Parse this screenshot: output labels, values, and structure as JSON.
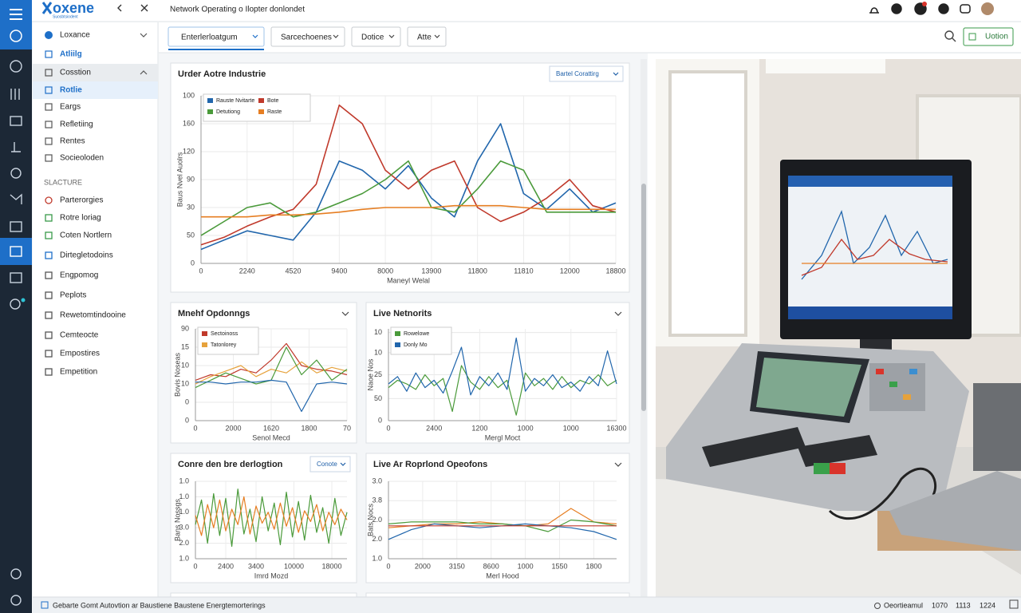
{
  "header": {
    "logo": "oxene",
    "logo_sub": "Suosbtsiodent",
    "title": "Network Operating o Ilopter donlondet"
  },
  "toolbar": {
    "tabs": [
      "Enterlerloatgum",
      "Sarcechoenes",
      "Dotice",
      "Atte"
    ],
    "button": "Uotion"
  },
  "sidebar": {
    "items": [
      "Loxance",
      "Atliilg",
      "Cosstion",
      "Rotlie",
      "Eargs",
      "Refletiing",
      "Rentes",
      "Socieoloden"
    ],
    "section": "SLACTURE",
    "section_items": [
      "Parterorgies",
      "Rotre loriag",
      "Coten Nortlern",
      "Dirtegletodoins",
      "Engpomog",
      "Peplots",
      "Rewetomtindooine",
      "Cemteocte",
      "Empostires",
      "Empetition"
    ]
  },
  "charts": [
    {
      "type": "line",
      "title": "Urder Aotre Industrie",
      "control": "Bartel Corattirg",
      "xlabel": "Maneyl Welal",
      "ylabel": "Baus Nvel Auolrs",
      "xlim": [
        0,
        18000
      ],
      "ylim": [
        0,
        180
      ],
      "xticks": [
        0,
        {
          "value": 2000,
          "label": "2240"
        },
        {
          "value": 4000,
          "label": "4520"
        },
        {
          "value": 6000,
          "label": "9400"
        },
        8000,
        {
          "value": 10000,
          "label": "13900"
        },
        {
          "value": 12000,
          "label": "11800"
        },
        {
          "value": 14000,
          "label": "11810"
        },
        {
          "value": 16000,
          "label": "12000"
        },
        {
          "value": 18000,
          "label": "18800"
        }
      ],
      "yticks": [
        0,
        {
          "value": 30,
          "label": "50"
        },
        {
          "value": 60,
          "label": "30"
        },
        90,
        120,
        {
          "value": 150,
          "label": "160"
        },
        {
          "value": 180,
          "label": "100"
        }
      ],
      "x": [
        0,
        1000,
        2000,
        3000,
        4000,
        5000,
        6000,
        7000,
        8000,
        9000,
        10000,
        11000,
        12000,
        13000,
        14000,
        15000,
        16000,
        17000,
        18000
      ],
      "series": [
        {
          "name": "Rauste Nvitarte",
          "color": "#2166ac",
          "values": [
            15,
            25,
            35,
            30,
            25,
            55,
            110,
            100,
            80,
            105,
            70,
            50,
            110,
            150,
            75,
            58,
            80,
            55,
            65
          ]
        },
        {
          "name": "Bote",
          "color": "#c0392b",
          "values": [
            20,
            28,
            40,
            50,
            58,
            85,
            170,
            150,
            100,
            80,
            100,
            110,
            60,
            45,
            55,
            70,
            90,
            62,
            55
          ]
        },
        {
          "name": "Detutiong",
          "color": "#4a9a3a",
          "values": [
            30,
            45,
            60,
            65,
            50,
            55,
            65,
            75,
            90,
            110,
            60,
            55,
            80,
            110,
            100,
            55,
            55,
            55,
            55
          ]
        },
        {
          "name": "Raste",
          "color": "#e67e22",
          "values": [
            50,
            50,
            50,
            52,
            52,
            53,
            55,
            58,
            60,
            60,
            60,
            62,
            62,
            62,
            60,
            58,
            58,
            58,
            58
          ]
        }
      ]
    },
    {
      "type": "line",
      "title": "Mnehf Opdonngs",
      "xlabel": "Senol Mecd",
      "ylabel": "Bovis Noseas",
      "xlim": [
        0,
        2000
      ],
      "ylim": [
        0,
        50
      ],
      "xticks": [
        0,
        {
          "value": 500,
          "label": "2000"
        },
        {
          "value": 1000,
          "label": "1620"
        },
        {
          "value": 1500,
          "label": "1800"
        },
        {
          "value": 2000,
          "label": "70"
        }
      ],
      "yticks": [
        0,
        {
          "value": 10,
          "label": "0"
        },
        {
          "value": 20,
          "label": "10"
        },
        {
          "value": 30,
          "label": "10"
        },
        {
          "value": 40,
          "label": "15"
        },
        {
          "value": 50,
          "label": "90"
        }
      ],
      "x": [
        0,
        200,
        400,
        600,
        800,
        1000,
        1200,
        1400,
        1600,
        1800,
        2000
      ],
      "series": [
        {
          "name": "Sectoinoss",
          "color": "#c0392b",
          "values": [
            22,
            25,
            24,
            28,
            26,
            33,
            42,
            30,
            28,
            27,
            25
          ]
        },
        {
          "name": "Tatonlorey",
          "color": "#e6a23c",
          "values": [
            20,
            24,
            27,
            30,
            24,
            28,
            26,
            32,
            26,
            29,
            27
          ]
        },
        {
          "color": "#4a9a3a",
          "values": [
            18,
            22,
            26,
            23,
            20,
            22,
            40,
            25,
            33,
            22,
            28
          ]
        },
        {
          "color": "#2166ac",
          "values": [
            21,
            21,
            20,
            21,
            21,
            22,
            21,
            5,
            20,
            21,
            20
          ]
        }
      ]
    },
    {
      "type": "line",
      "title": "Live Netnorits",
      "xlabel": "Mergl Moct",
      "ylabel": "Naoe Nos",
      "xlim": [
        0,
        2000
      ],
      "ylim": [
        0,
        50
      ],
      "xticks": [
        0,
        {
          "value": 400,
          "label": "2400"
        },
        {
          "value": 800,
          "label": "1200"
        },
        {
          "value": 1200,
          "label": "1000"
        },
        {
          "value": 1600,
          "label": "1000"
        },
        {
          "value": 2000,
          "label": "16300"
        }
      ],
      "yticks": [
        0,
        {
          "value": 12,
          "label": "50"
        },
        25,
        {
          "value": 37,
          "label": "10"
        },
        {
          "value": 48,
          "label": "10"
        }
      ],
      "x": [
        0,
        80,
        160,
        240,
        320,
        400,
        480,
        560,
        640,
        720,
        800,
        880,
        960,
        1040,
        1120,
        1200,
        1280,
        1360,
        1440,
        1520,
        1600,
        1680,
        1760,
        1840,
        1920,
        2000
      ],
      "series": [
        {
          "name": "Rowelowe",
          "color": "#4a9a3a",
          "values": [
            18,
            22,
            20,
            17,
            25,
            19,
            23,
            5,
            30,
            21,
            17,
            24,
            18,
            22,
            3,
            26,
            19,
            23,
            17,
            24,
            18,
            22,
            20,
            25,
            19,
            22
          ]
        },
        {
          "name": "Donly Mo",
          "color": "#2166ac",
          "values": [
            20,
            24,
            16,
            26,
            18,
            22,
            15,
            27,
            40,
            14,
            24,
            19,
            26,
            17,
            45,
            16,
            23,
            19,
            25,
            18,
            21,
            16,
            24,
            19,
            38,
            20
          ]
        }
      ]
    },
    {
      "type": "line",
      "title": "Conre den bre derlogtion",
      "control": "Conote",
      "xlabel": "Imrd Mozd",
      "ylabel": "Bans Nossgs",
      "xlim": [
        0,
        2000
      ],
      "ylim": [
        0,
        5
      ],
      "xticks": [
        0,
        {
          "value": 400,
          "label": "2400"
        },
        {
          "value": 800,
          "label": "3400"
        },
        {
          "value": 1300,
          "label": "10000"
        },
        {
          "value": 1800,
          "label": "18000"
        }
      ],
      "yticks": [
        {
          "value": 0,
          "label": "1.0"
        },
        {
          "value": 1,
          "label": "2.0"
        },
        {
          "value": 2,
          "label": "3.0"
        },
        {
          "value": 3,
          "label": "1.0"
        },
        {
          "value": 4,
          "label": "1.0"
        },
        {
          "value": 5,
          "label": "1.0"
        }
      ],
      "x": [
        0,
        80,
        160,
        240,
        320,
        400,
        480,
        560,
        640,
        720,
        800,
        880,
        960,
        1040,
        1120,
        1200,
        1280,
        1360,
        1440,
        1520,
        1600,
        1680,
        1760,
        1840,
        1920,
        2000
      ],
      "series": [
        {
          "color": "#4a9a3a",
          "values": [
            2.2,
            3.8,
            1.0,
            4.2,
            1.5,
            3.9,
            0.8,
            4.5,
            1.6,
            3.2,
            1.1,
            4.0,
            1.8,
            3.6,
            0.9,
            4.3,
            1.4,
            3.7,
            1.2,
            4.1,
            1.7,
            3.3,
            1.0,
            3.9,
            1.5,
            3.0
          ]
        },
        {
          "color": "#e67e22",
          "values": [
            2.8,
            1.5,
            3.5,
            2.0,
            3.8,
            1.8,
            3.2,
            2.2,
            4.0,
            1.6,
            3.4,
            2.3,
            3.0,
            1.9,
            3.6,
            2.1,
            3.3,
            1.7,
            3.1,
            2.4,
            3.5,
            1.8,
            3.0,
            2.2,
            3.2,
            2.5
          ]
        }
      ]
    },
    {
      "type": "line",
      "title": "Live Ar Roprlond Opeofons",
      "xlabel": "Merl Hood",
      "ylabel": "Bats Nocs",
      "xlim": [
        0,
        2000
      ],
      "ylim": [
        0,
        4
      ],
      "xticks": [
        0,
        {
          "value": 300,
          "label": "2000"
        },
        {
          "value": 600,
          "label": "3150"
        },
        {
          "value": 900,
          "label": "8600"
        },
        {
          "value": 1200,
          "label": "1000"
        },
        {
          "value": 1500,
          "label": "1550"
        },
        1800
      ],
      "yticks": [
        {
          "value": 0,
          "label": "1.0"
        },
        {
          "value": 1,
          "label": "2.0"
        },
        {
          "value": 2,
          "label": "2.0"
        },
        {
          "value": 3,
          "label": "3.8"
        },
        {
          "value": 4,
          "label": "3.0"
        }
      ],
      "x": [
        0,
        200,
        400,
        600,
        800,
        1000,
        1200,
        1400,
        1600,
        1800,
        2000
      ],
      "series": [
        {
          "color": "#e67e22",
          "values": [
            1.6,
            1.7,
            1.8,
            1.8,
            1.9,
            1.8,
            1.7,
            1.8,
            2.6,
            1.9,
            1.8
          ]
        },
        {
          "color": "#4a9a3a",
          "values": [
            1.8,
            1.9,
            1.9,
            1.9,
            1.8,
            1.8,
            1.7,
            1.4,
            2.0,
            1.9,
            1.7
          ]
        },
        {
          "color": "#2166ac",
          "values": [
            1.0,
            1.5,
            1.8,
            1.7,
            1.6,
            1.7,
            1.8,
            1.7,
            1.6,
            1.4,
            1.0
          ]
        },
        {
          "color": "#c0392b",
          "values": [
            1.7,
            1.7,
            1.7,
            1.7,
            1.7,
            1.7,
            1.7,
            1.7,
            1.7,
            1.7,
            1.7
          ]
        }
      ]
    }
  ],
  "footer": {
    "status": "Gebarte Gomt Autovtion ar Baustiene Baustene Energtemorterings",
    "right": "Oeortieamul",
    "codes": [
      "1070",
      "1113",
      "1224"
    ]
  }
}
